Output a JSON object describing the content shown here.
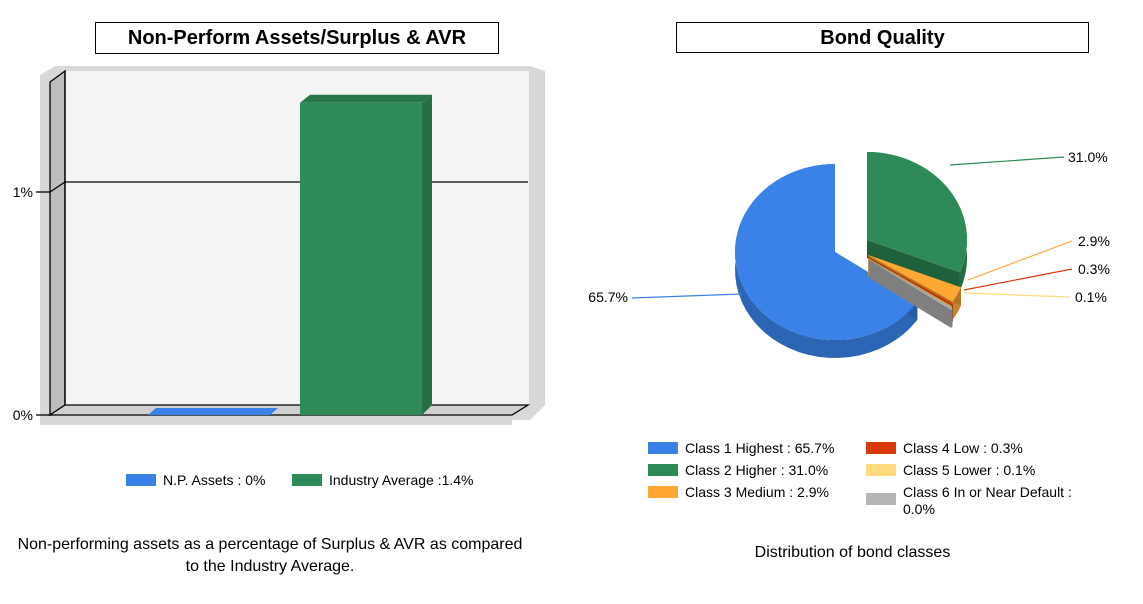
{
  "chart_data": [
    {
      "type": "bar",
      "title": "Non-Perform Assets/Surplus & AVR",
      "categories": [
        "N.P. Assets : 0%",
        "Industry Average :1.4%"
      ],
      "values": [
        0,
        1.4
      ],
      "colors": [
        "#3a82e8",
        "#2e8b57"
      ],
      "ytick_labels": [
        "0%",
        "1%"
      ],
      "yticks": [
        0,
        1
      ],
      "ylim": [
        0,
        1.5
      ],
      "grid": true,
      "three_d": true,
      "legend_position": "bottom",
      "caption": "Non-performing assets as a percentage of Surplus & AVR as compared to the Industry Average."
    },
    {
      "type": "pie",
      "title": "Bond Quality",
      "three_d": true,
      "slices": [
        {
          "label": "Class 1 Highest : 65.7%",
          "value": 65.7,
          "data_label": "65.7%",
          "color": "#3a82e8"
        },
        {
          "label": "Class 2 Higher : 31.0%",
          "value": 31.0,
          "data_label": "31.0%",
          "color": "#2e8b57"
        },
        {
          "label": "Class 3 Medium : 2.9%",
          "value": 2.9,
          "data_label": "2.9%",
          "color": "#ffa733"
        },
        {
          "label": "Class 4 Low : 0.3%",
          "value": 0.3,
          "data_label": "0.3%",
          "color": "#d93a0a"
        },
        {
          "label": "Class 5 Lower : 0.1%",
          "value": 0.1,
          "data_label": "0.1%",
          "color": "#ffdb80"
        },
        {
          "label": "Class 6 In or Near Default : 0.0%",
          "value": 0.0,
          "color": "#b5b5b5"
        }
      ],
      "legend_position": "bottom",
      "caption": "Distribution of bond classes"
    }
  ]
}
